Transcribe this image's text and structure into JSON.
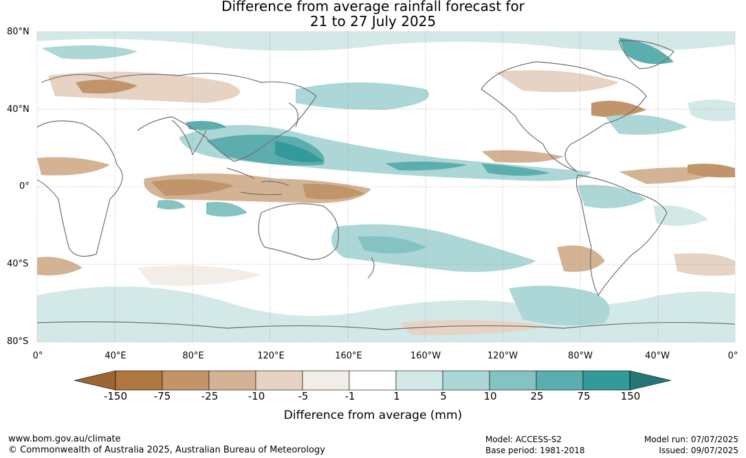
{
  "title_line1": "Difference from average rainfall forecast for",
  "title_line2": "21 to 27 July 2025",
  "lat_labels": [
    "80°N",
    "40°N",
    "0°",
    "40°S",
    "80°S"
  ],
  "lon_labels": [
    "0°",
    "40°E",
    "80°E",
    "120°E",
    "160°E",
    "160°W",
    "120°W",
    "80°W",
    "40°W",
    "0°"
  ],
  "colorbar": {
    "ticks": [
      "-150",
      "-75",
      "-25",
      "-10",
      "-5",
      "-1",
      "1",
      "5",
      "10",
      "25",
      "75",
      "150"
    ],
    "colors": [
      "#9b6634",
      "#b07840",
      "#c19469",
      "#d4b394",
      "#e6d3c3",
      "#f3ede7",
      "#ffffff",
      "#d3e9e8",
      "#acd7d6",
      "#85c3c2",
      "#5caeae",
      "#34999a",
      "#247775"
    ],
    "label": "Difference from average (mm)"
  },
  "footer": {
    "url": "www.bom.gov.au/climate",
    "copyright": "© Commonwealth of Australia 2025, Australian Bureau of Meteorology",
    "model": "Model: ACCESS-S2",
    "base_period": "Base period: 1981-2018",
    "model_run": "Model run: 07/07/2025",
    "issued": "Issued: 09/07/2025"
  }
}
